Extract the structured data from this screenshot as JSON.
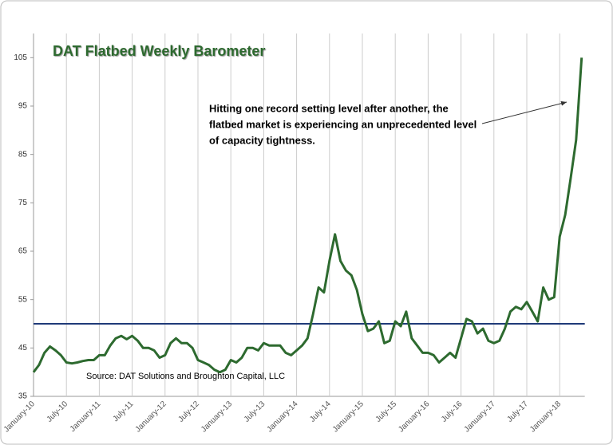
{
  "chart_data": {
    "type": "line",
    "title": "DAT Flatbed Weekly Barometer",
    "annotation": [
      "Hitting one record setting level after another, the",
      "flatbed market is experiencing an unprecedented level",
      "of capacity tightness."
    ],
    "source": "Source: DAT Solutions and Broughton Capital, LLC",
    "categories": [
      "January-10",
      null,
      null,
      null,
      null,
      null,
      "July-10",
      null,
      null,
      null,
      null,
      null,
      "January-11",
      null,
      null,
      null,
      null,
      null,
      "July-11",
      null,
      null,
      null,
      null,
      null,
      "January-12",
      null,
      null,
      null,
      null,
      null,
      "July-12",
      null,
      null,
      null,
      null,
      null,
      "January-13",
      null,
      null,
      null,
      null,
      null,
      "July-13",
      null,
      null,
      null,
      null,
      null,
      "January-14",
      null,
      null,
      null,
      null,
      null,
      "July-14",
      null,
      null,
      null,
      null,
      null,
      "January-15",
      null,
      null,
      null,
      null,
      null,
      "July-15",
      null,
      null,
      null,
      null,
      null,
      "January-16",
      null,
      null,
      null,
      null,
      null,
      "July-16",
      null,
      null,
      null,
      null,
      null,
      "January-17",
      null,
      null,
      null,
      null,
      null,
      "July-17",
      null,
      null,
      null,
      null,
      null,
      "January-18",
      null,
      null,
      null,
      null
    ],
    "values": [
      40,
      41.5,
      44,
      45.3,
      44.5,
      43.5,
      42,
      41.8,
      42,
      42.3,
      42.5,
      42.5,
      43.5,
      43.5,
      45.5,
      47,
      47.5,
      46.8,
      47.5,
      46.5,
      45,
      45,
      44.5,
      43,
      43.5,
      46,
      47,
      46,
      46,
      45,
      42.5,
      42,
      41.5,
      40.5,
      40,
      40.5,
      42.5,
      42,
      43,
      45,
      45,
      44.5,
      46,
      45.5,
      45.5,
      45.5,
      44,
      43.5,
      44.5,
      45.5,
      47,
      52,
      57.5,
      56.5,
      63,
      68.5,
      63,
      61,
      60,
      57,
      52,
      48.5,
      49,
      50.5,
      46,
      46.5,
      50.5,
      49.5,
      52.5,
      47,
      45.5,
      44,
      44,
      43.5,
      42,
      43,
      44,
      43,
      47,
      51,
      50.5,
      48,
      49,
      46.5,
      46,
      46.5,
      49,
      52.5,
      53.5,
      53,
      54.5,
      52.5,
      50.5,
      57.5,
      55,
      55.5,
      68,
      72.5,
      80,
      88,
      105
    ],
    "color": "#2d6a2f",
    "reference_line": {
      "value": 50,
      "color": "#1f3a78"
    },
    "ylim": [
      35,
      110
    ],
    "yticks": [
      35,
      45,
      55,
      65,
      75,
      85,
      95,
      105
    ],
    "grid": true
  }
}
